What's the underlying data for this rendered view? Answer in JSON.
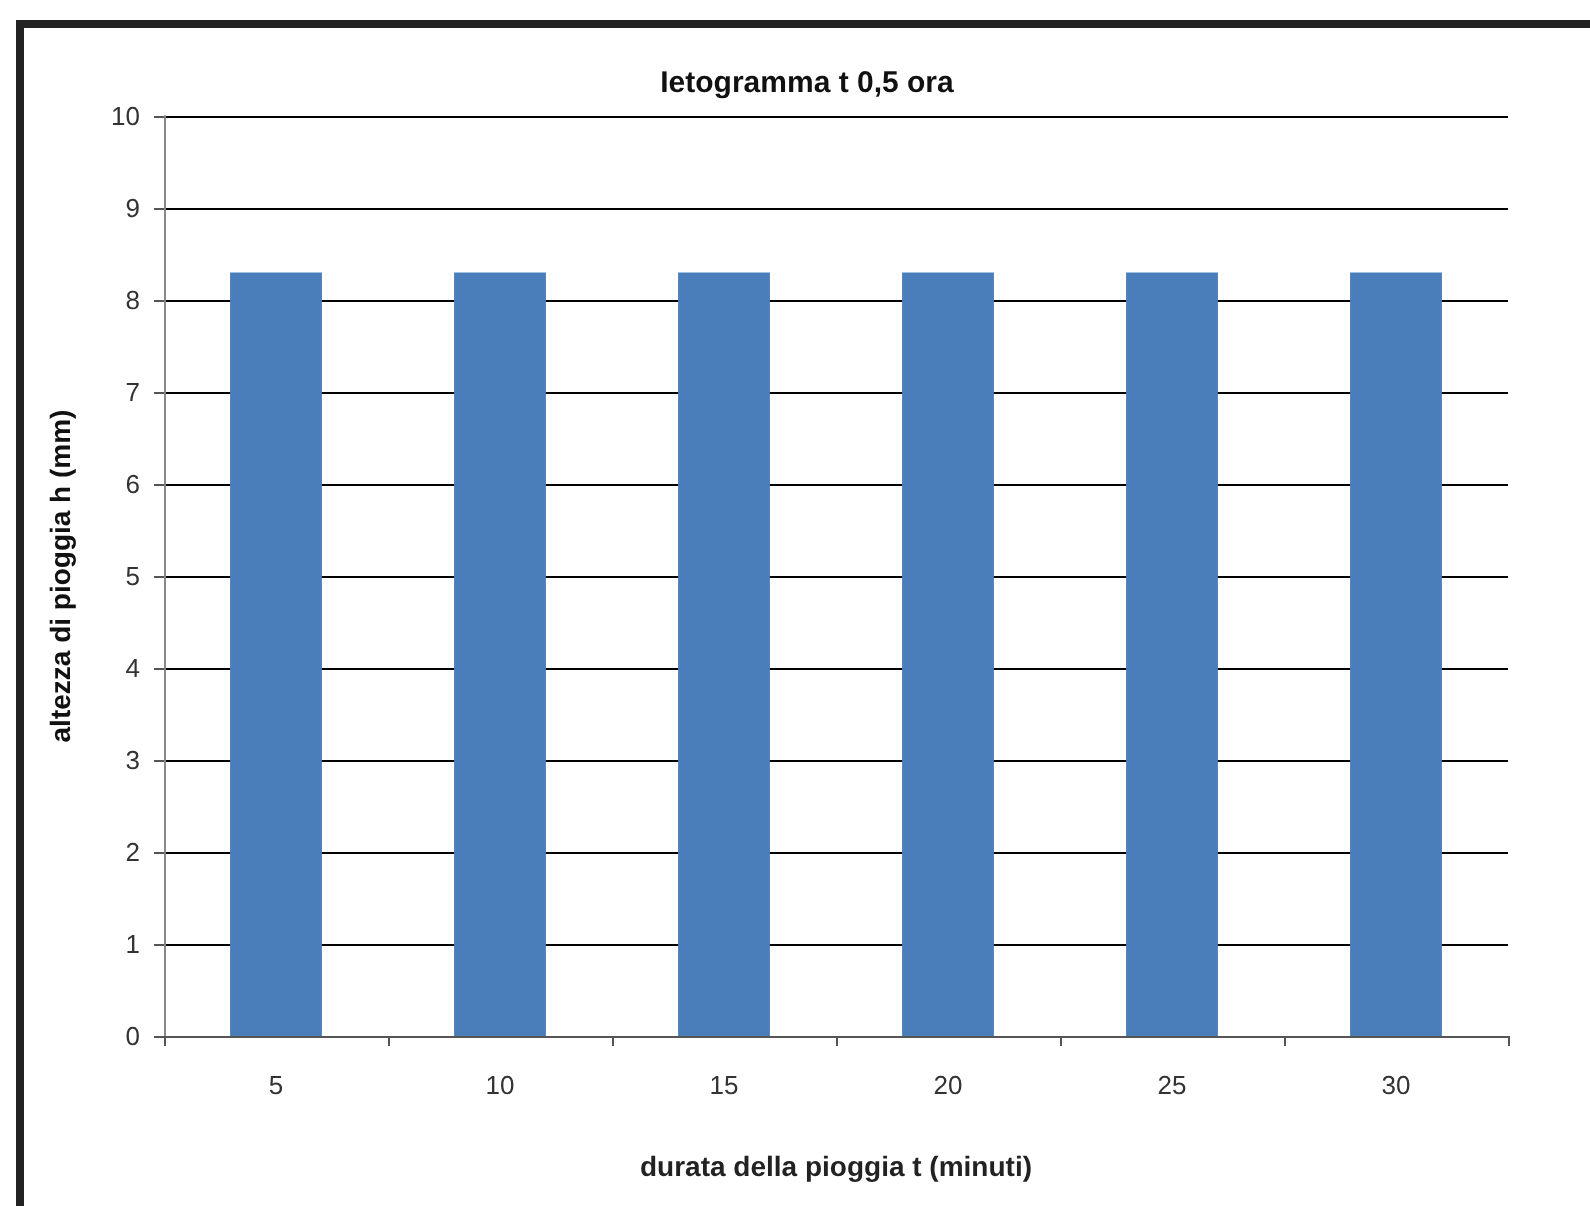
{
  "chart_data": {
    "type": "bar",
    "title": "Ietogramma t 0,5 ora",
    "xlabel": "durata della pioggia t (minuti)",
    "ylabel": "altezza di pioggia h (mm)",
    "categories": [
      "5",
      "10",
      "15",
      "20",
      "25",
      "30"
    ],
    "values": [
      8.3,
      8.3,
      8.3,
      8.3,
      8.3,
      8.3
    ],
    "color": "#4a7ebb",
    "ylim": [
      0,
      10
    ],
    "yticks": [
      0,
      1,
      2,
      3,
      4,
      5,
      6,
      7,
      8,
      9,
      10
    ],
    "grid": "y"
  }
}
